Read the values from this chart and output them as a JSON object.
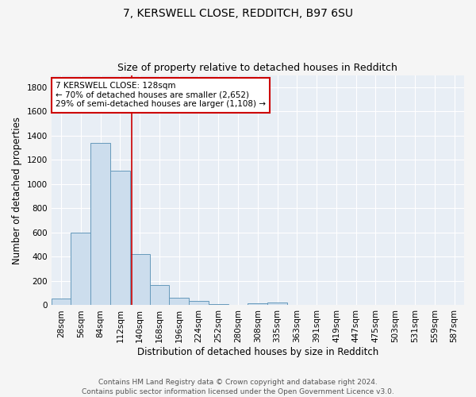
{
  "title": "7, KERSWELL CLOSE, REDDITCH, B97 6SU",
  "subtitle": "Size of property relative to detached houses in Redditch",
  "xlabel": "Distribution of detached houses by size in Redditch",
  "ylabel": "Number of detached properties",
  "categories": [
    "28sqm",
    "56sqm",
    "84sqm",
    "112sqm",
    "140sqm",
    "168sqm",
    "196sqm",
    "224sqm",
    "252sqm",
    "280sqm",
    "308sqm",
    "335sqm",
    "363sqm",
    "391sqm",
    "419sqm",
    "447sqm",
    "475sqm",
    "503sqm",
    "531sqm",
    "559sqm",
    "587sqm"
  ],
  "values": [
    55,
    600,
    1340,
    1110,
    425,
    170,
    60,
    35,
    8,
    0,
    15,
    20,
    0,
    0,
    0,
    0,
    0,
    0,
    0,
    0,
    0
  ],
  "bar_color": "#ccdded",
  "bar_edge_color": "#6699bb",
  "vline_color": "#cc0000",
  "annotation_text": "7 KERSWELL CLOSE: 128sqm\n← 70% of detached houses are smaller (2,652)\n29% of semi-detached houses are larger (1,108) →",
  "annotation_box_facecolor": "#ffffff",
  "annotation_box_edgecolor": "#cc0000",
  "ylim": [
    0,
    1900
  ],
  "yticks": [
    0,
    200,
    400,
    600,
    800,
    1000,
    1200,
    1400,
    1600,
    1800
  ],
  "plot_bg_color": "#e8eef5",
  "fig_bg_color": "#f5f5f5",
  "grid_color": "#ffffff",
  "footer_text": "Contains HM Land Registry data © Crown copyright and database right 2024.\nContains public sector information licensed under the Open Government Licence v3.0.",
  "title_fontsize": 10,
  "subtitle_fontsize": 9,
  "axis_label_fontsize": 8.5,
  "tick_fontsize": 7.5,
  "footer_fontsize": 6.5,
  "annotation_fontsize": 7.5
}
